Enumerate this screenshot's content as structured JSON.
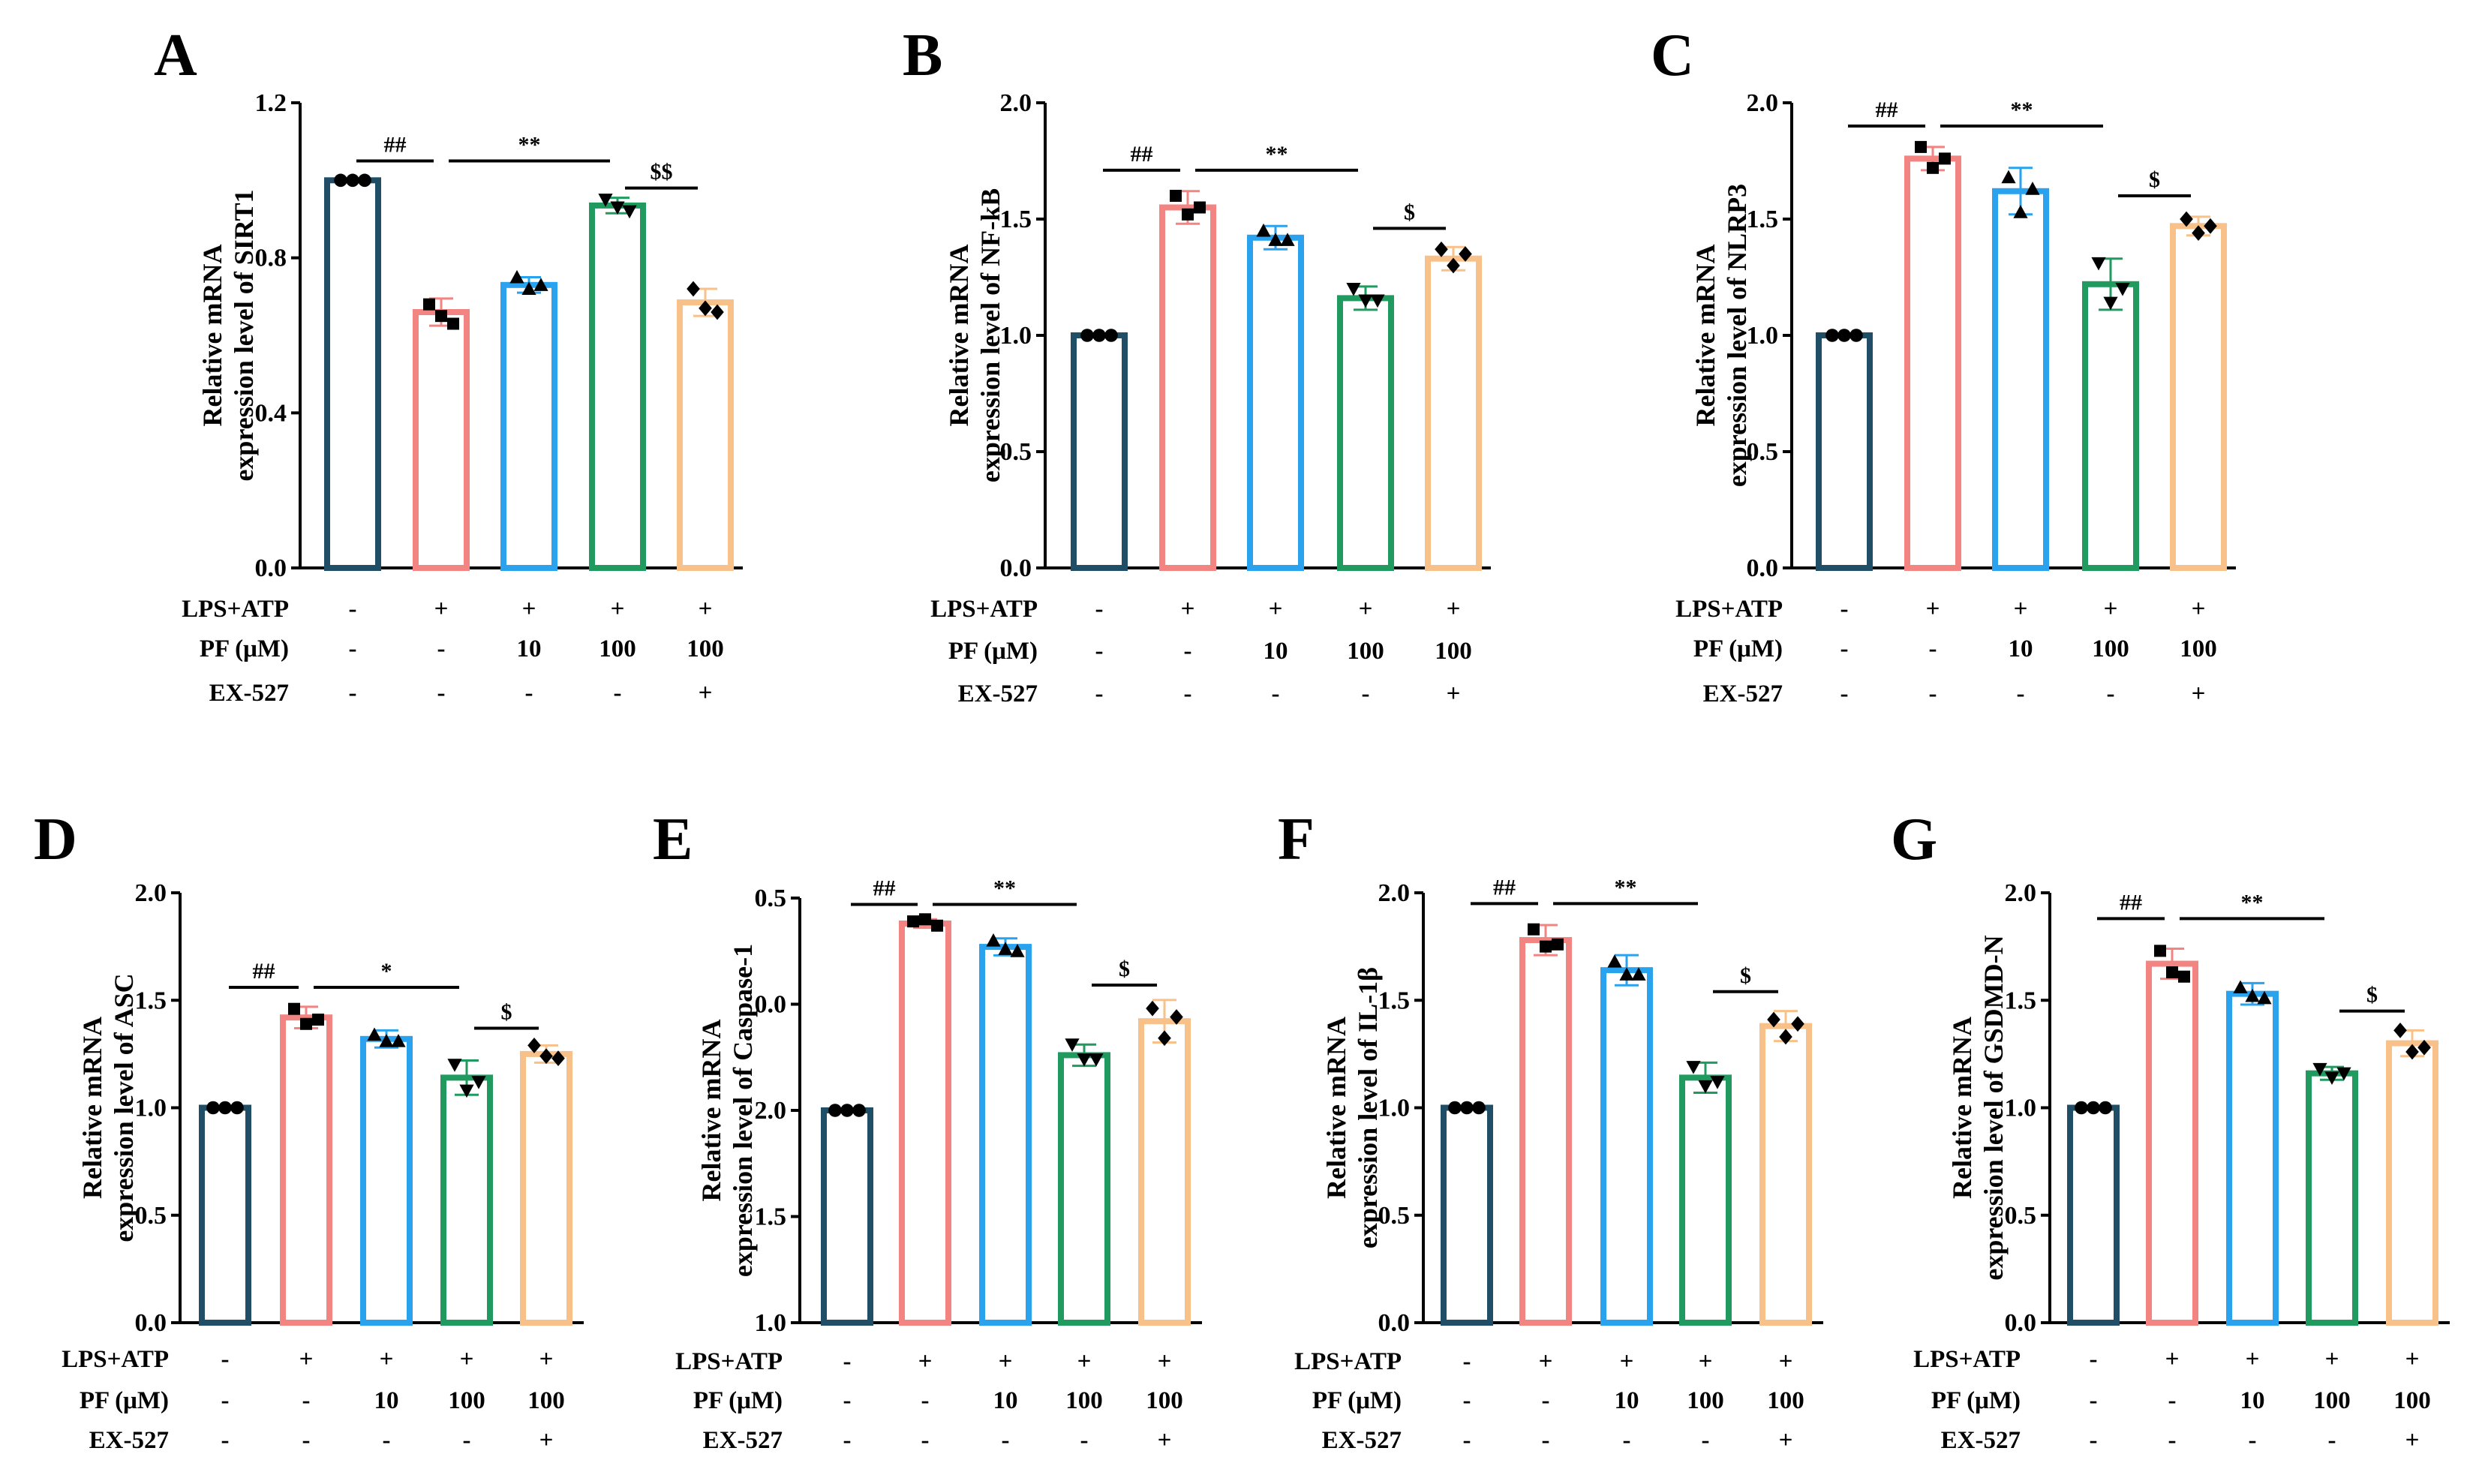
{
  "colors": {
    "Control": "#1f4e66",
    "LPS+ATP": "#f28482",
    "PF 10": "#2aa2ee",
    "PF 100": "#209a5f",
    "PF 100 + EX-527": "#f8c18a",
    "axis": "#000000"
  },
  "conditions": {
    "row_labels": [
      "LPS+ATP",
      "PF (μM)",
      "EX-527"
    ],
    "rows": [
      [
        "-",
        "+",
        "+",
        "+",
        "+"
      ],
      [
        "-",
        "-",
        "10",
        "100",
        "100"
      ],
      [
        "-",
        "-",
        "-",
        "-",
        "+"
      ]
    ]
  },
  "chart_data": [
    {
      "panel": "A",
      "type": "bar",
      "categories": [
        "Control",
        "LPS+ATP",
        "PF 10",
        "PF 100",
        "PF 100 + EX-527"
      ],
      "values": [
        1.0,
        0.66,
        0.73,
        0.935,
        0.685
      ],
      "errors": [
        0.005,
        0.035,
        0.02,
        0.02,
        0.035
      ],
      "points": [
        [
          1.0,
          1.0,
          1.0
        ],
        [
          0.68,
          0.65,
          0.63
        ],
        [
          0.75,
          0.72,
          0.73
        ],
        [
          0.95,
          0.93,
          0.92
        ],
        [
          0.72,
          0.67,
          0.66
        ]
      ],
      "ylabel": [
        "Relative mRNA",
        "expression level of SIRT1"
      ],
      "ylim": [
        0,
        1.2
      ],
      "yticks": [
        "0.0",
        "0.4",
        "0.8",
        "1.2"
      ],
      "significance": [
        {
          "label": "##",
          "from": 0,
          "to": 1,
          "y": 0.79,
          "level": 1.05
        },
        {
          "label": "**",
          "from": 1,
          "to": 3,
          "y": 0.79,
          "level": 1.05
        },
        {
          "label": "$$",
          "from": 3,
          "to": 4,
          "y": 0.79,
          "level": 0.98
        }
      ]
    },
    {
      "panel": "B",
      "type": "bar",
      "categories": [
        "Control",
        "LPS+ATP",
        "PF 10",
        "PF 100",
        "PF 100 + EX-527"
      ],
      "values": [
        1.0,
        1.55,
        1.42,
        1.16,
        1.33
      ],
      "errors": [
        0.005,
        0.07,
        0.05,
        0.05,
        0.05
      ],
      "points": [
        [
          1.0,
          1.0,
          1.0
        ],
        [
          1.6,
          1.52,
          1.55
        ],
        [
          1.45,
          1.41,
          1.41
        ],
        [
          1.2,
          1.15,
          1.15
        ],
        [
          1.37,
          1.3,
          1.35
        ]
      ],
      "ylabel": [
        "Relative mRNA",
        "expression level of NF-kB"
      ],
      "ylim": [
        0,
        2.0
      ],
      "yticks": [
        "0.0",
        "0.5",
        "1.0",
        "1.5",
        "2.0"
      ],
      "significance": [
        {
          "label": "##",
          "from": 0,
          "to": 1,
          "level": 1.71
        },
        {
          "label": "**",
          "from": 1,
          "to": 3,
          "level": 1.71
        },
        {
          "label": "$",
          "from": 3,
          "to": 4,
          "level": 1.46
        }
      ]
    },
    {
      "panel": "C",
      "type": "bar",
      "categories": [
        "Control",
        "LPS+ATP",
        "PF 10",
        "PF 100",
        "PF 100 + EX-527"
      ],
      "values": [
        1.0,
        1.76,
        1.62,
        1.22,
        1.47
      ],
      "errors": [
        0.005,
        0.05,
        0.1,
        0.11,
        0.04
      ],
      "points": [
        [
          1.0,
          1.0,
          1.0
        ],
        [
          1.81,
          1.72,
          1.76
        ],
        [
          1.68,
          1.53,
          1.63
        ],
        [
          1.31,
          1.14,
          1.2
        ],
        [
          1.5,
          1.44,
          1.47
        ]
      ],
      "ylabel": [
        "Relative mRNA",
        "expression level of NLRP3"
      ],
      "ylim": [
        0,
        2.0
      ],
      "yticks": [
        "0.0",
        "0.5",
        "1.0",
        "1.5",
        "2.0"
      ],
      "significance": [
        {
          "label": "##",
          "from": 0,
          "to": 1,
          "level": 1.9
        },
        {
          "label": "**",
          "from": 1,
          "to": 3,
          "level": 1.9
        },
        {
          "label": "$",
          "from": 3,
          "to": 4,
          "level": 1.6
        }
      ]
    },
    {
      "panel": "D",
      "type": "bar",
      "categories": [
        "Control",
        "LPS+ATP",
        "PF 10",
        "PF 100",
        "PF 100 + EX-527"
      ],
      "values": [
        1.0,
        1.42,
        1.32,
        1.14,
        1.25
      ],
      "errors": [
        0.005,
        0.05,
        0.04,
        0.08,
        0.04
      ],
      "points": [
        [
          1.0,
          1.0,
          1.0
        ],
        [
          1.46,
          1.39,
          1.41
        ],
        [
          1.34,
          1.31,
          1.31
        ],
        [
          1.2,
          1.08,
          1.12
        ],
        [
          1.29,
          1.24,
          1.23
        ]
      ],
      "ylabel": [
        "Relative mRNA",
        "expression level of ASC"
      ],
      "ylim": [
        0,
        2.0
      ],
      "yticks": [
        "0.0",
        "0.5",
        "1.0",
        "1.5",
        "2.0"
      ],
      "significance": [
        {
          "label": "##",
          "from": 0,
          "to": 1,
          "level": 1.56
        },
        {
          "label": "*",
          "from": 1,
          "to": 3,
          "level": 1.56
        },
        {
          "label": "$",
          "from": 3,
          "to": 4,
          "level": 1.37
        }
      ]
    },
    {
      "panel": "E",
      "type": "bar",
      "categories": [
        "Control",
        "LPS+ATP",
        "PF 10",
        "PF 100",
        "PF 100 + EX-527"
      ],
      "values": [
        1.0,
        1.88,
        1.77,
        1.26,
        1.42
      ],
      "errors": [
        0.005,
        0.02,
        0.04,
        0.05,
        0.1
      ],
      "points": [
        [
          1.0,
          1.0,
          1.0
        ],
        [
          1.89,
          1.9,
          1.87
        ],
        [
          1.8,
          1.76,
          1.75
        ],
        [
          1.31,
          1.24,
          1.24
        ],
        [
          1.48,
          1.34,
          1.44
        ]
      ],
      "ylabel": [
        "Relative mRNA",
        "expression level of Caspase-1"
      ],
      "ylim": [
        0,
        2.0
      ],
      "yticks": [
        "1.0",
        "1.5",
        "2.0",
        "0.0",
        "0.5"
      ],
      "ytick_values": [
        1.0,
        1.5,
        2.0,
        0.0,
        0.5
      ],
      "significance": [
        {
          "label": "##",
          "from": 0,
          "to": 1,
          "level": 1.97
        },
        {
          "label": "**",
          "from": 1,
          "to": 3,
          "level": 1.97
        },
        {
          "label": "$",
          "from": 3,
          "to": 4,
          "level": 1.59
        }
      ]
    },
    {
      "panel": "F",
      "type": "bar",
      "categories": [
        "Control",
        "LPS+ATP",
        "PF 10",
        "PF 100",
        "PF 100 + EX-527"
      ],
      "values": [
        1.0,
        1.78,
        1.64,
        1.14,
        1.38
      ],
      "errors": [
        0.005,
        0.07,
        0.07,
        0.07,
        0.07
      ],
      "points": [
        [
          1.0,
          1.0,
          1.0
        ],
        [
          1.83,
          1.75,
          1.76
        ],
        [
          1.68,
          1.62,
          1.62
        ],
        [
          1.19,
          1.1,
          1.12
        ],
        [
          1.41,
          1.33,
          1.39
        ]
      ],
      "ylabel": [
        "Relative mRNA",
        "expression level of IL-1β"
      ],
      "ylim": [
        0,
        2.0
      ],
      "yticks": [
        "0.0",
        "0.5",
        "1.0",
        "1.5",
        "2.0"
      ],
      "significance": [
        {
          "label": "##",
          "from": 0,
          "to": 1,
          "level": 1.95
        },
        {
          "label": "**",
          "from": 1,
          "to": 3,
          "level": 1.95
        },
        {
          "label": "$",
          "from": 3,
          "to": 4,
          "level": 1.54
        }
      ]
    },
    {
      "panel": "G",
      "type": "bar",
      "categories": [
        "Control",
        "LPS+ATP",
        "PF 10",
        "PF 100",
        "PF 100 + EX-527"
      ],
      "values": [
        1.0,
        1.67,
        1.53,
        1.16,
        1.3
      ],
      "errors": [
        0.005,
        0.07,
        0.05,
        0.03,
        0.06
      ],
      "points": [
        [
          1.0,
          1.0,
          1.0
        ],
        [
          1.73,
          1.63,
          1.61
        ],
        [
          1.56,
          1.52,
          1.51
        ],
        [
          1.18,
          1.14,
          1.16
        ],
        [
          1.36,
          1.26,
          1.28
        ]
      ],
      "ylabel": [
        "Relative mRNA",
        "expression level of GSDMD-N"
      ],
      "ylim": [
        0,
        2.0
      ],
      "yticks": [
        "0.0",
        "0.5",
        "1.0",
        "1.5",
        "2.0"
      ],
      "significance": [
        {
          "label": "##",
          "from": 0,
          "to": 1,
          "level": 1.88
        },
        {
          "label": "**",
          "from": 1,
          "to": 3,
          "level": 1.88
        },
        {
          "label": "$",
          "from": 3,
          "to": 4,
          "level": 1.45
        }
      ]
    }
  ]
}
